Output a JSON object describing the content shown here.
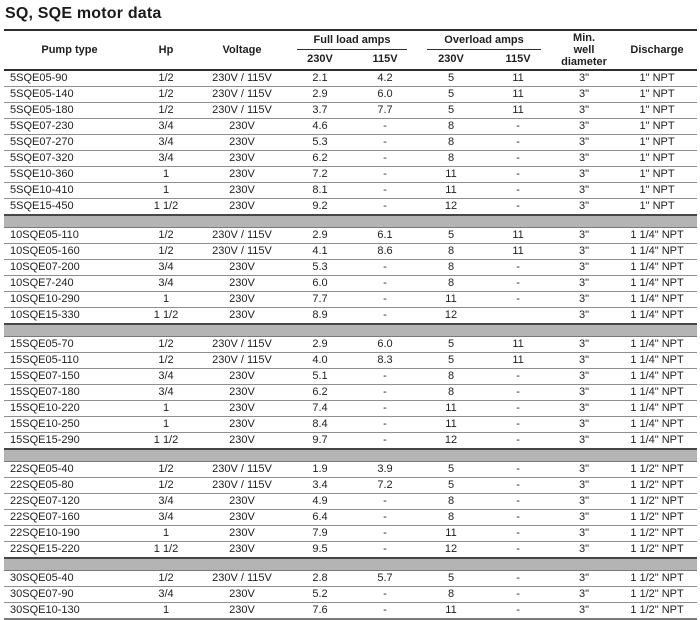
{
  "title": "SQ, SQE motor data",
  "table": {
    "headers": {
      "pump_type": "Pump type",
      "hp": "Hp",
      "voltage": "Voltage",
      "full_load_amps": "Full load amps",
      "overload_amps": "Overload amps",
      "v230": "230V",
      "v115": "115V",
      "min_well_diameter": [
        "Min.",
        "well",
        "diameter"
      ],
      "discharge": "Discharge"
    },
    "column_keys": [
      "pump-type",
      "hp",
      "voltage",
      "fla-230v",
      "fla-115v",
      "ola-230v",
      "ola-115v",
      "min-well-diameter",
      "discharge"
    ],
    "groups": [
      {
        "rows": [
          [
            "5SQE05-90",
            "1/2",
            "230V / 115V",
            "2.1",
            "4.2",
            "5",
            "11",
            "3\"",
            "1\" NPT"
          ],
          [
            "5SQE05-140",
            "1/2",
            "230V / 115V",
            "2.9",
            "6.0",
            "5",
            "11",
            "3\"",
            "1\" NPT"
          ],
          [
            "5SQE05-180",
            "1/2",
            "230V / 115V",
            "3.7",
            "7.7",
            "5",
            "11",
            "3\"",
            "1\" NPT"
          ],
          [
            "5SQE07-230",
            "3/4",
            "230V",
            "4.6",
            "-",
            "8",
            "-",
            "3\"",
            "1\" NPT"
          ],
          [
            "5SQE07-270",
            "3/4",
            "230V",
            "5.3",
            "-",
            "8",
            "-",
            "3\"",
            "1\" NPT"
          ],
          [
            "5SQE07-320",
            "3/4",
            "230V",
            "6.2",
            "-",
            "8",
            "-",
            "3\"",
            "1\" NPT"
          ],
          [
            "5SQE10-360",
            "1",
            "230V",
            "7.2",
            "-",
            "11",
            "-",
            "3\"",
            "1\" NPT"
          ],
          [
            "5SQE10-410",
            "1",
            "230V",
            "8.1",
            "-",
            "11",
            "-",
            "3\"",
            "1\" NPT"
          ],
          [
            "5SQE15-450",
            "1 1/2",
            "230V",
            "9.2",
            "-",
            "12",
            "-",
            "3\"",
            "1\" NPT"
          ]
        ]
      },
      {
        "rows": [
          [
            "10SQE05-110",
            "1/2",
            "230V / 115V",
            "2.9",
            "6.1",
            "5",
            "11",
            "3\"",
            "1 1/4\" NPT"
          ],
          [
            "10SQE05-160",
            "1/2",
            "230V / 115V",
            "4.1",
            "8.6",
            "8",
            "11",
            "3\"",
            "1 1/4\" NPT"
          ],
          [
            "10SQE07-200",
            "3/4",
            "230V",
            "5.3",
            "-",
            "8",
            "-",
            "3\"",
            "1 1/4\" NPT"
          ],
          [
            "10SQE7-240",
            "3/4",
            "230V",
            "6.0",
            "-",
            "8",
            "-",
            "3\"",
            "1 1/4\" NPT"
          ],
          [
            "10SQE10-290",
            "1",
            "230V",
            "7.7",
            "-",
            "11",
            "-",
            "3\"",
            "1 1/4\" NPT"
          ],
          [
            "10SQE15-330",
            "1 1/2",
            "230V",
            "8.9",
            "-",
            "12",
            "",
            "3\"",
            "1 1/4\" NPT"
          ]
        ]
      },
      {
        "rows": [
          [
            "15SQE05-70",
            "1/2",
            "230V / 115V",
            "2.9",
            "6.0",
            "5",
            "11",
            "3\"",
            "1 1/4\" NPT"
          ],
          [
            "15SQE05-110",
            "1/2",
            "230V / 115V",
            "4.0",
            "8.3",
            "5",
            "11",
            "3\"",
            "1 1/4\" NPT"
          ],
          [
            "15SQE07-150",
            "3/4",
            "230V",
            "5.1",
            "-",
            "8",
            "-",
            "3\"",
            "1 1/4\" NPT"
          ],
          [
            "15SQE07-180",
            "3/4",
            "230V",
            "6.2",
            "-",
            "8",
            "-",
            "3\"",
            "1 1/4\" NPT"
          ],
          [
            "15SQE10-220",
            "1",
            "230V",
            "7.4",
            "-",
            "11",
            "-",
            "3\"",
            "1 1/4\" NPT"
          ],
          [
            "15SQE10-250",
            "1",
            "230V",
            "8.4",
            "-",
            "11",
            "-",
            "3\"",
            "1 1/4\" NPT"
          ],
          [
            "15SQE15-290",
            "1 1/2",
            "230V",
            "9.7",
            "-",
            "12",
            "-",
            "3\"",
            "1 1/4\" NPT"
          ]
        ]
      },
      {
        "rows": [
          [
            "22SQE05-40",
            "1/2",
            "230V / 115V",
            "1.9",
            "3.9",
            "5",
            "-",
            "3\"",
            "1 1/2\" NPT"
          ],
          [
            "22SQE05-80",
            "1/2",
            "230V / 115V",
            "3.4",
            "7.2",
            "5",
            "-",
            "3\"",
            "1 1/2\" NPT"
          ],
          [
            "22SQE07-120",
            "3/4",
            "230V",
            "4.9",
            "-",
            "8",
            "-",
            "3\"",
            "1 1/2\" NPT"
          ],
          [
            "22SQE07-160",
            "3/4",
            "230V",
            "6.4",
            "-",
            "8",
            "-",
            "3\"",
            "1 1/2\" NPT"
          ],
          [
            "22SQE10-190",
            "1",
            "230V",
            "7.9",
            "-",
            "11",
            "-",
            "3\"",
            "1 1/2\" NPT"
          ],
          [
            "22SQE15-220",
            "1 1/2",
            "230V",
            "9.5",
            "-",
            "12",
            "-",
            "3\"",
            "1 1/2\" NPT"
          ]
        ]
      },
      {
        "rows": [
          [
            "30SQE05-40",
            "1/2",
            "230V / 115V",
            "2.8",
            "5.7",
            "5",
            "-",
            "3\"",
            "1 1/2\" NPT"
          ],
          [
            "30SQE07-90",
            "3/4",
            "230V",
            "5.2",
            "-",
            "8",
            "-",
            "3\"",
            "1 1/2\" NPT"
          ],
          [
            "30SQE10-130",
            "1",
            "230V",
            "7.6",
            "-",
            "11",
            "-",
            "3\"",
            "1 1/2\" NPT"
          ]
        ]
      }
    ]
  },
  "colors": {
    "separator_band": "#b4b4b4",
    "heavy_rule": "#2e2e2e",
    "row_rule": "#8f8f8f",
    "text": "#1f1f1f"
  }
}
